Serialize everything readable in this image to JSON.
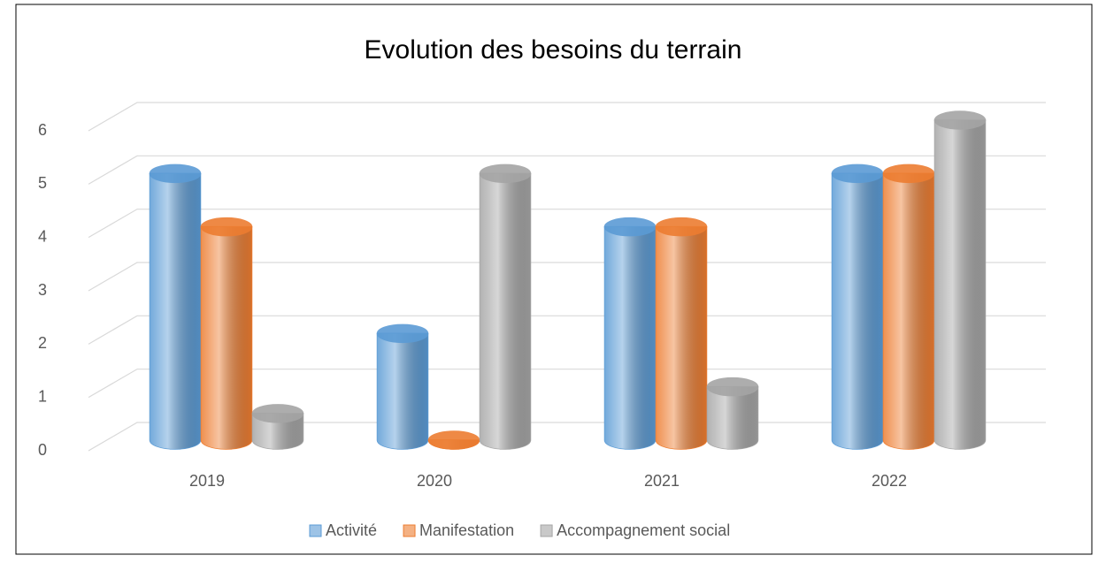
{
  "chart_data": {
    "type": "bar",
    "title": "Evolution des besoins du terrain",
    "categories": [
      "2019",
      "2020",
      "2021",
      "2022"
    ],
    "series": [
      {
        "name": "Activité",
        "color": "#5b9bd5",
        "values": [
          5,
          2,
          4,
          5
        ]
      },
      {
        "name": "Manifestation",
        "color": "#ed7d31",
        "values": [
          4,
          0,
          4,
          5
        ]
      },
      {
        "name": "Accompagnement social",
        "color": "#a5a5a5",
        "values": [
          0.5,
          5,
          1,
          6
        ]
      }
    ],
    "ylim": [
      0,
      6
    ],
    "yticks": [
      0,
      1,
      2,
      3,
      4,
      5,
      6
    ],
    "grid": true,
    "legend": "bottom"
  }
}
